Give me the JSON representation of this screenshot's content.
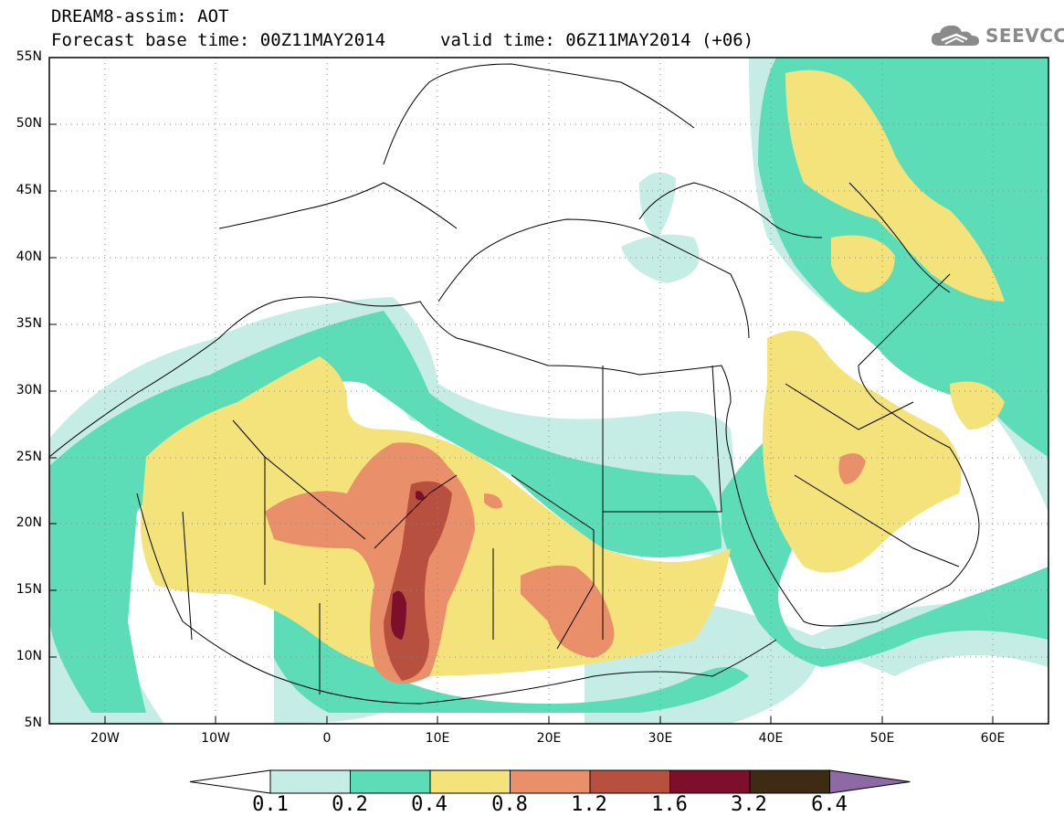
{
  "header": {
    "title": "DREAM8-assim: AOT",
    "base_time": "Forecast base time: 00Z11MAY2014",
    "valid_time": "valid time: 06Z11MAY2014 (+06)"
  },
  "logo": {
    "text": "SEEVCCC",
    "icon": "cloud-icon"
  },
  "map": {
    "lon_range": [
      -25,
      65
    ],
    "lat_range": [
      5,
      55
    ],
    "grid_lines": "dotted",
    "lat_labels": [
      "55N",
      "50N",
      "45N",
      "40N",
      "35N",
      "30N",
      "25N",
      "20N",
      "15N",
      "10N",
      "5N"
    ],
    "lon_labels": [
      "20W",
      "10W",
      "0",
      "10E",
      "20E",
      "30E",
      "40E",
      "50E",
      "60E"
    ]
  },
  "legend": {
    "colors": [
      "#ffffff",
      "#c5ede6",
      "#5ddcb8",
      "#f4e27a",
      "#e9906a",
      "#b85040",
      "#7d0f2c",
      "#3f2a16",
      "#8e69a6"
    ],
    "labels": [
      "0.1",
      "0.2",
      "0.4",
      "0.8",
      "1.2",
      "1.6",
      "3.2",
      "6.4"
    ]
  }
}
